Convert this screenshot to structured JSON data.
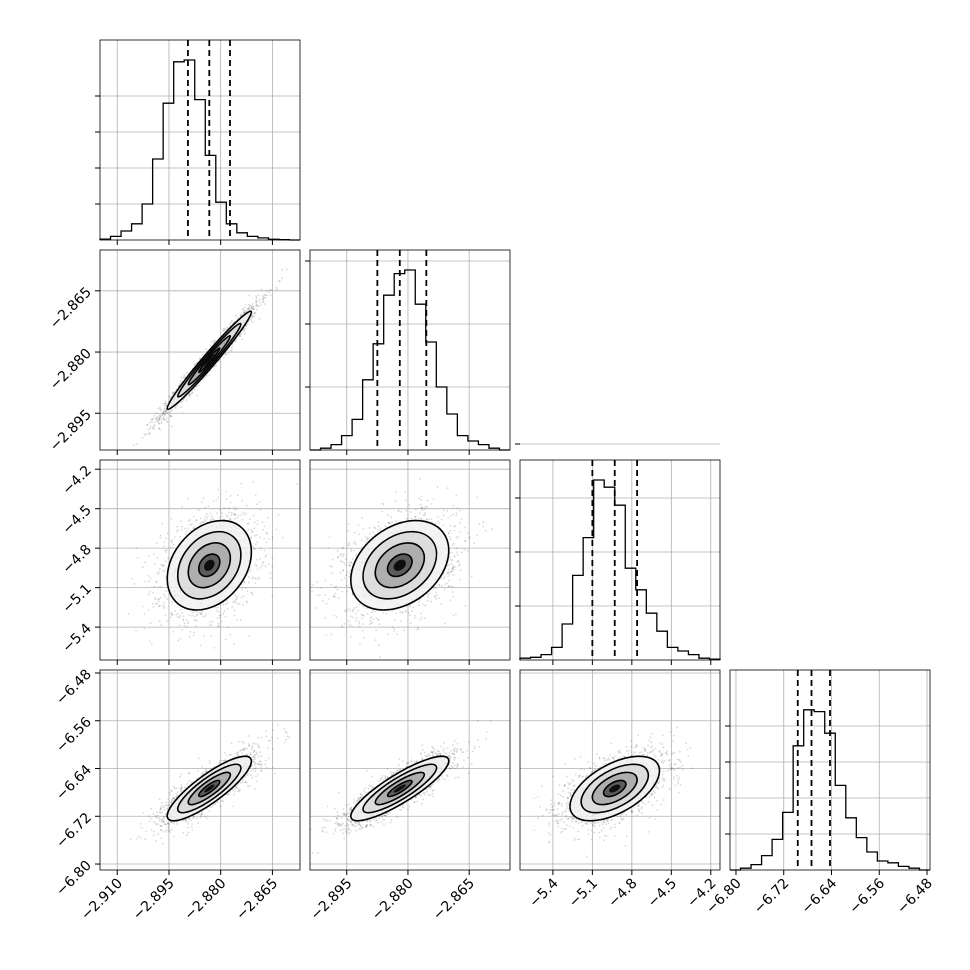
{
  "chart_data": {
    "type": "corner",
    "grid": true,
    "params": [
      {
        "range": [
          -2.915,
          -2.857
        ],
        "ticks": [
          -2.91,
          -2.895,
          -2.88,
          -2.865
        ],
        "tick_labels": [
          "−2.910",
          "−2.895",
          "−2.880",
          "−2.865"
        ],
        "quantiles": [
          -2.8895,
          -2.8833,
          -2.8773
        ],
        "hist_y_ticks": [
          0.2,
          0.4,
          0.6,
          0.8
        ],
        "hist": [
          0.005,
          0.02,
          0.05,
          0.09,
          0.2,
          0.45,
          0.76,
          0.99,
          1.0,
          0.78,
          0.47,
          0.21,
          0.09,
          0.04,
          0.02,
          0.012,
          0.004,
          0.002,
          0.0
        ]
      },
      {
        "range": [
          -2.904,
          -2.855
        ],
        "ticks": [
          -2.895,
          -2.88,
          -2.865
        ],
        "tick_labels": [
          "−2.895",
          "−2.880",
          "−2.865"
        ],
        "quantiles": [
          -2.8875,
          -2.882,
          -2.8755
        ],
        "hist_y_ticks": [
          0.35,
          0.7,
          1.05
        ],
        "hist": [
          0.0,
          0.01,
          0.03,
          0.08,
          0.17,
          0.39,
          0.59,
          0.86,
          0.98,
          1.0,
          0.81,
          0.6,
          0.35,
          0.2,
          0.08,
          0.05,
          0.03,
          0.01,
          0.0
        ]
      },
      {
        "range": [
          -5.65,
          -4.13
        ],
        "ticks": [
          -5.4,
          -5.1,
          -4.8,
          -4.5,
          -4.2
        ],
        "tick_labels": [
          "−5.4",
          "−5.1",
          "−4.8",
          "−4.5",
          "−4.2"
        ],
        "quantiles": [
          -5.1,
          -4.93,
          -4.76
        ],
        "hist_y_ticks": [
          0.3,
          0.6,
          0.9,
          1.2
        ],
        "hist": [
          0.01,
          0.015,
          0.03,
          0.07,
          0.2,
          0.47,
          0.68,
          1.0,
          0.96,
          0.86,
          0.51,
          0.39,
          0.26,
          0.16,
          0.07,
          0.05,
          0.03,
          0.01,
          0.005
        ]
      },
      {
        "range": [
          -6.81,
          -6.475
        ],
        "ticks": [
          -6.8,
          -6.72,
          -6.64,
          -6.56,
          -6.48
        ],
        "tick_labels": [
          "−6.80",
          "−6.72",
          "−6.64",
          "−6.56",
          "−6.48"
        ],
        "quantiles": [
          -6.6965,
          -6.6735,
          -6.6425
        ],
        "hist_y_ticks": [
          0.2,
          0.4,
          0.6,
          0.8
        ],
        "hist": [
          0.0,
          0.01,
          0.03,
          0.08,
          0.17,
          0.32,
          0.69,
          0.89,
          0.88,
          0.76,
          0.47,
          0.29,
          0.18,
          0.1,
          0.05,
          0.04,
          0.02,
          0.01,
          0.0
        ]
      }
    ],
    "pairs": [
      {
        "x": 0,
        "y": 1,
        "corr": 0.98
      },
      {
        "x": 0,
        "y": 2,
        "corr": 0.3
      },
      {
        "x": 1,
        "y": 2,
        "corr": 0.33
      },
      {
        "x": 0,
        "y": 3,
        "corr": 0.85
      },
      {
        "x": 1,
        "y": 3,
        "corr": 0.86
      },
      {
        "x": 2,
        "y": 3,
        "corr": 0.55
      }
    ]
  }
}
